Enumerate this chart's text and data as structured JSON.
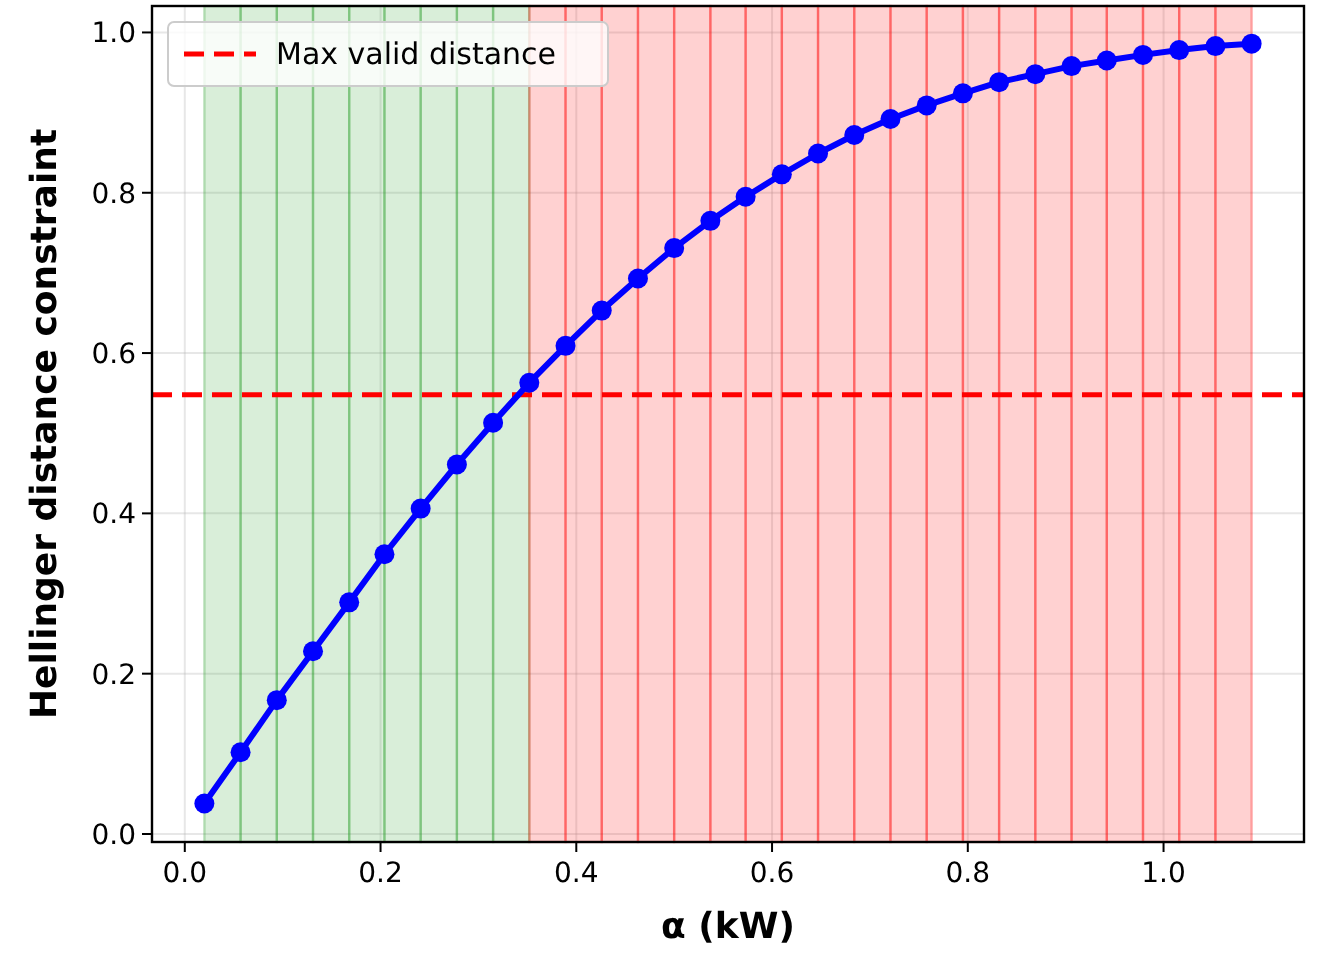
{
  "chart_data": {
    "type": "line",
    "xlabel": "α (kW)",
    "ylabel": "Hellinger distance constraint",
    "xlim": [
      -0.0335,
      1.1435
    ],
    "xticks": [
      {
        "value": 0,
        "label": "0.0"
      },
      {
        "value": 0.2,
        "label": "0.2"
      },
      {
        "value": 0.4,
        "label": "0.4"
      },
      {
        "value": 0.6,
        "label": "0.6"
      },
      {
        "value": 0.8,
        "label": "0.8"
      },
      {
        "value": 1,
        "label": "1.0"
      }
    ],
    "ylim": [
      -0.01,
      1.033
    ],
    "yticks": [
      {
        "value": 0,
        "label": "0.0"
      },
      {
        "value": 0.2,
        "label": "0.2"
      },
      {
        "value": 0.4,
        "label": "0.4"
      },
      {
        "value": 0.6,
        "label": "0.6"
      },
      {
        "value": 0.8,
        "label": "0.8"
      },
      {
        "value": 1,
        "label": "1.0"
      }
    ],
    "grid": true,
    "legend": "top left",
    "marker": "circle",
    "line_style": "solid",
    "series": [
      {
        "color": "#0000ff",
        "x": [
          0.02,
          0.057,
          0.094,
          0.131,
          0.168,
          0.204,
          0.241,
          0.278,
          0.315,
          0.352,
          0.389,
          0.426,
          0.463,
          0.5,
          0.537,
          0.573,
          0.61,
          0.647,
          0.684,
          0.721,
          0.758,
          0.795,
          0.832,
          0.869,
          0.906,
          0.942,
          0.979,
          1.016,
          1.053,
          1.09
        ],
        "values": [
          0.038,
          0.102,
          0.167,
          0.228,
          0.289,
          0.349,
          0.406,
          0.461,
          0.513,
          0.563,
          0.609,
          0.653,
          0.693,
          0.731,
          0.765,
          0.795,
          0.823,
          0.849,
          0.872,
          0.892,
          0.909,
          0.924,
          0.938,
          0.948,
          0.958,
          0.965,
          0.972,
          0.978,
          0.983,
          0.986
        ]
      }
    ],
    "ref_lines": [
      {
        "axis": "y",
        "value": 0.548,
        "label": "Max valid distance",
        "color": "#ff0000",
        "line_style": "dashed"
      }
    ],
    "bands": [
      {
        "axis": "x",
        "from": 0.02,
        "to": 0.057,
        "color": "#2ca02c"
      },
      {
        "axis": "x",
        "from": 0.057,
        "to": 0.094,
        "color": "#2ca02c"
      },
      {
        "axis": "x",
        "from": 0.094,
        "to": 0.131,
        "color": "#2ca02c"
      },
      {
        "axis": "x",
        "from": 0.131,
        "to": 0.168,
        "color": "#2ca02c"
      },
      {
        "axis": "x",
        "from": 0.168,
        "to": 0.204,
        "color": "#2ca02c"
      },
      {
        "axis": "x",
        "from": 0.204,
        "to": 0.241,
        "color": "#2ca02c"
      },
      {
        "axis": "x",
        "from": 0.241,
        "to": 0.278,
        "color": "#2ca02c"
      },
      {
        "axis": "x",
        "from": 0.278,
        "to": 0.315,
        "color": "#2ca02c"
      },
      {
        "axis": "x",
        "from": 0.315,
        "to": 0.352,
        "color": "#2ca02c"
      },
      {
        "axis": "x",
        "from": 0.352,
        "to": 0.389,
        "color": "#ff0000"
      },
      {
        "axis": "x",
        "from": 0.389,
        "to": 0.426,
        "color": "#ff0000"
      },
      {
        "axis": "x",
        "from": 0.426,
        "to": 0.463,
        "color": "#ff0000"
      },
      {
        "axis": "x",
        "from": 0.463,
        "to": 0.5,
        "color": "#ff0000"
      },
      {
        "axis": "x",
        "from": 0.5,
        "to": 0.537,
        "color": "#ff0000"
      },
      {
        "axis": "x",
        "from": 0.537,
        "to": 0.573,
        "color": "#ff0000"
      },
      {
        "axis": "x",
        "from": 0.573,
        "to": 0.61,
        "color": "#ff0000"
      },
      {
        "axis": "x",
        "from": 0.61,
        "to": 0.647,
        "color": "#ff0000"
      },
      {
        "axis": "x",
        "from": 0.647,
        "to": 0.684,
        "color": "#ff0000"
      },
      {
        "axis": "x",
        "from": 0.684,
        "to": 0.721,
        "color": "#ff0000"
      },
      {
        "axis": "x",
        "from": 0.721,
        "to": 0.758,
        "color": "#ff0000"
      },
      {
        "axis": "x",
        "from": 0.758,
        "to": 0.795,
        "color": "#ff0000"
      },
      {
        "axis": "x",
        "from": 0.795,
        "to": 0.832,
        "color": "#ff0000"
      },
      {
        "axis": "x",
        "from": 0.832,
        "to": 0.869,
        "color": "#ff0000"
      },
      {
        "axis": "x",
        "from": 0.869,
        "to": 0.906,
        "color": "#ff0000"
      },
      {
        "axis": "x",
        "from": 0.906,
        "to": 0.942,
        "color": "#ff0000"
      },
      {
        "axis": "x",
        "from": 0.942,
        "to": 0.979,
        "color": "#ff0000"
      },
      {
        "axis": "x",
        "from": 0.979,
        "to": 1.016,
        "color": "#ff0000"
      },
      {
        "axis": "x",
        "from": 1.016,
        "to": 1.053,
        "color": "#ff0000"
      },
      {
        "axis": "x",
        "from": 1.053,
        "to": 1.09,
        "color": "#ff0000"
      }
    ]
  }
}
